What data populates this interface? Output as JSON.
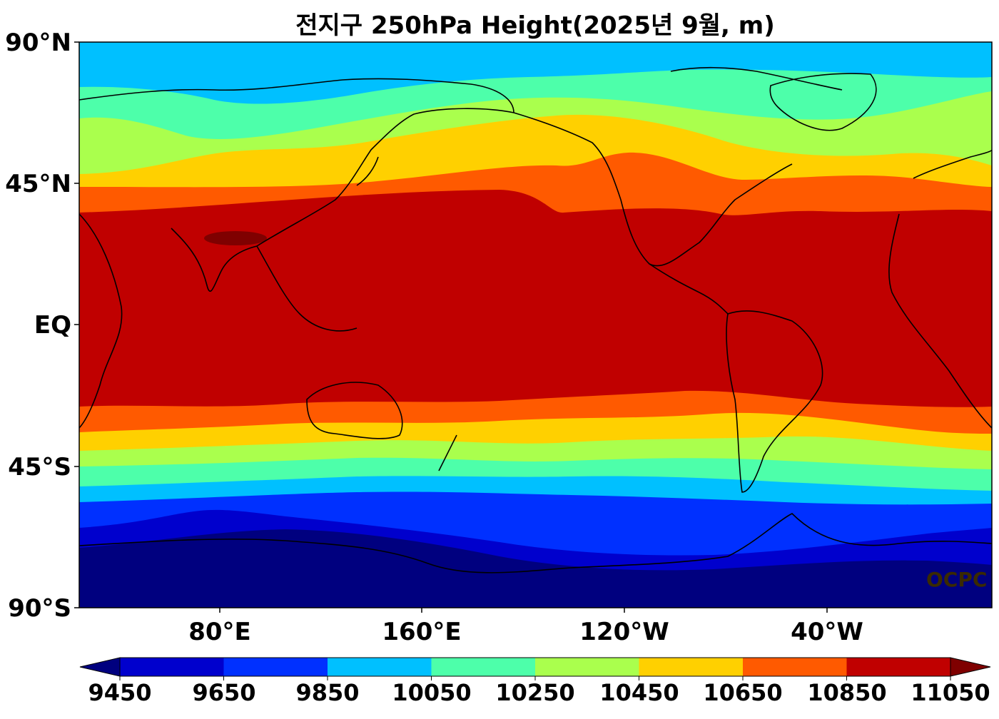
{
  "title": "전지구 250hPa Height(2025년 9월, m)",
  "watermark": "OCPC",
  "lat_labels": [
    "90°N",
    "45°N",
    "EQ",
    "45°S",
    "90°S"
  ],
  "lon_labels": [
    "80°E",
    "160°E",
    "120°W",
    "40°W"
  ],
  "colorbar": {
    "ticks": [
      "9450",
      "9650",
      "9850",
      "10050",
      "10250",
      "10450",
      "10650",
      "10850",
      "11050"
    ],
    "colors": [
      "#00007f",
      "#0000cd",
      "#0030ff",
      "#00c0ff",
      "#4dffaa",
      "#aaff4d",
      "#ffd000",
      "#ff5a00",
      "#c00000",
      "#7f0000"
    ]
  },
  "legend": {
    "under_color": "#00007f",
    "over_color": "#7f0000"
  }
}
